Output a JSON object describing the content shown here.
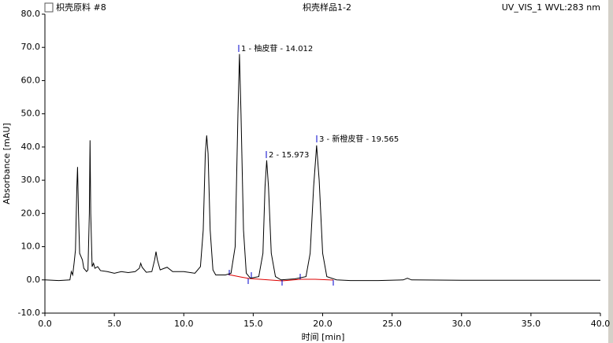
{
  "chart_data": {
    "type": "line",
    "title": "枳壳样品1-2",
    "header_left": "枳壳原料 #8",
    "header_right": "UV_VIS_1 WVL:283 nm",
    "xlabel": "时间 [min]",
    "ylabel": "Absorbance [mAU]",
    "color": "#000000",
    "annotations": [
      "1 - 柚皮苷 - 14.012",
      "2 - 15.973",
      "3 - 新橙皮苷 - 19.565"
    ],
    "xlim": [
      0,
      40
    ],
    "ylim": [
      -10,
      80
    ],
    "xticks": [
      {
        "value": 0,
        "label": "0.0"
      },
      {
        "value": 5,
        "label": "5.0"
      },
      {
        "value": 10,
        "label": "10.0"
      },
      {
        "value": 15,
        "label": "15.0"
      },
      {
        "value": 20,
        "label": "20.0"
      },
      {
        "value": 25,
        "label": "25.0"
      },
      {
        "value": 30,
        "label": "30.0"
      },
      {
        "value": 35,
        "label": "35.0"
      },
      {
        "value": 40,
        "label": "40.0"
      }
    ],
    "yticks": [
      {
        "value": -10,
        "label": "-10.0"
      },
      {
        "value": 0,
        "label": "0.0"
      },
      {
        "value": 10,
        "label": "10.0"
      },
      {
        "value": 20,
        "label": "20.0"
      },
      {
        "value": 30,
        "label": "30.0"
      },
      {
        "value": 40,
        "label": "40.0"
      },
      {
        "value": 50,
        "label": "50.0"
      },
      {
        "value": 60,
        "label": "60.0"
      },
      {
        "value": 70,
        "label": "70.0"
      },
      {
        "value": 80,
        "label": "80.0"
      }
    ],
    "x": [
      0,
      1,
      1.8,
      1.9,
      2.0,
      2.1,
      2.2,
      2.3,
      2.35,
      2.42,
      2.5,
      2.6,
      2.7,
      2.8,
      2.9,
      3.0,
      3.1,
      3.2,
      3.25,
      3.3,
      3.4,
      3.5,
      3.6,
      3.8,
      4.0,
      4.5,
      5.0,
      5.5,
      6.0,
      6.5,
      6.8,
      6.9,
      7.0,
      7.3,
      7.7,
      7.9,
      8.0,
      8.1,
      8.3,
      8.6,
      8.8,
      9.2,
      10.0,
      10.8,
      11.2,
      11.4,
      11.55,
      11.65,
      11.75,
      11.9,
      12.1,
      12.3,
      13.0,
      13.4,
      13.7,
      13.9,
      14.01,
      14.12,
      14.3,
      14.5,
      14.8,
      15.4,
      15.7,
      15.85,
      15.97,
      16.1,
      16.3,
      16.6,
      17.0,
      18.0,
      18.8,
      19.1,
      19.35,
      19.565,
      19.75,
      20.0,
      20.3,
      21.0,
      22,
      24,
      25.8,
      26.1,
      26.4,
      30,
      35,
      40
    ],
    "values": [
      0,
      -0.2,
      0,
      2.5,
      1.5,
      5,
      9,
      28,
      34,
      20,
      8,
      7,
      6,
      3.5,
      3,
      2.5,
      3,
      20,
      42,
      20,
      4,
      5,
      3.5,
      4,
      2.8,
      2.5,
      2,
      2.5,
      2.2,
      2.5,
      3.5,
      5,
      3.8,
      2.3,
      2.5,
      6,
      8.5,
      6,
      3,
      3.5,
      3.8,
      2.5,
      2.5,
      2,
      4,
      15,
      38,
      43.5,
      38,
      15,
      3,
      1.5,
      1.5,
      2,
      10,
      50,
      68,
      50,
      15,
      2,
      0.5,
      1,
      8,
      28,
      36,
      28,
      8,
      1,
      0,
      0.3,
      1,
      8,
      28,
      40.5,
      30,
      8,
      1,
      0,
      -0.2,
      -0.2,
      0,
      0.5,
      0,
      -0.1,
      -0.1,
      -0.1
    ]
  }
}
